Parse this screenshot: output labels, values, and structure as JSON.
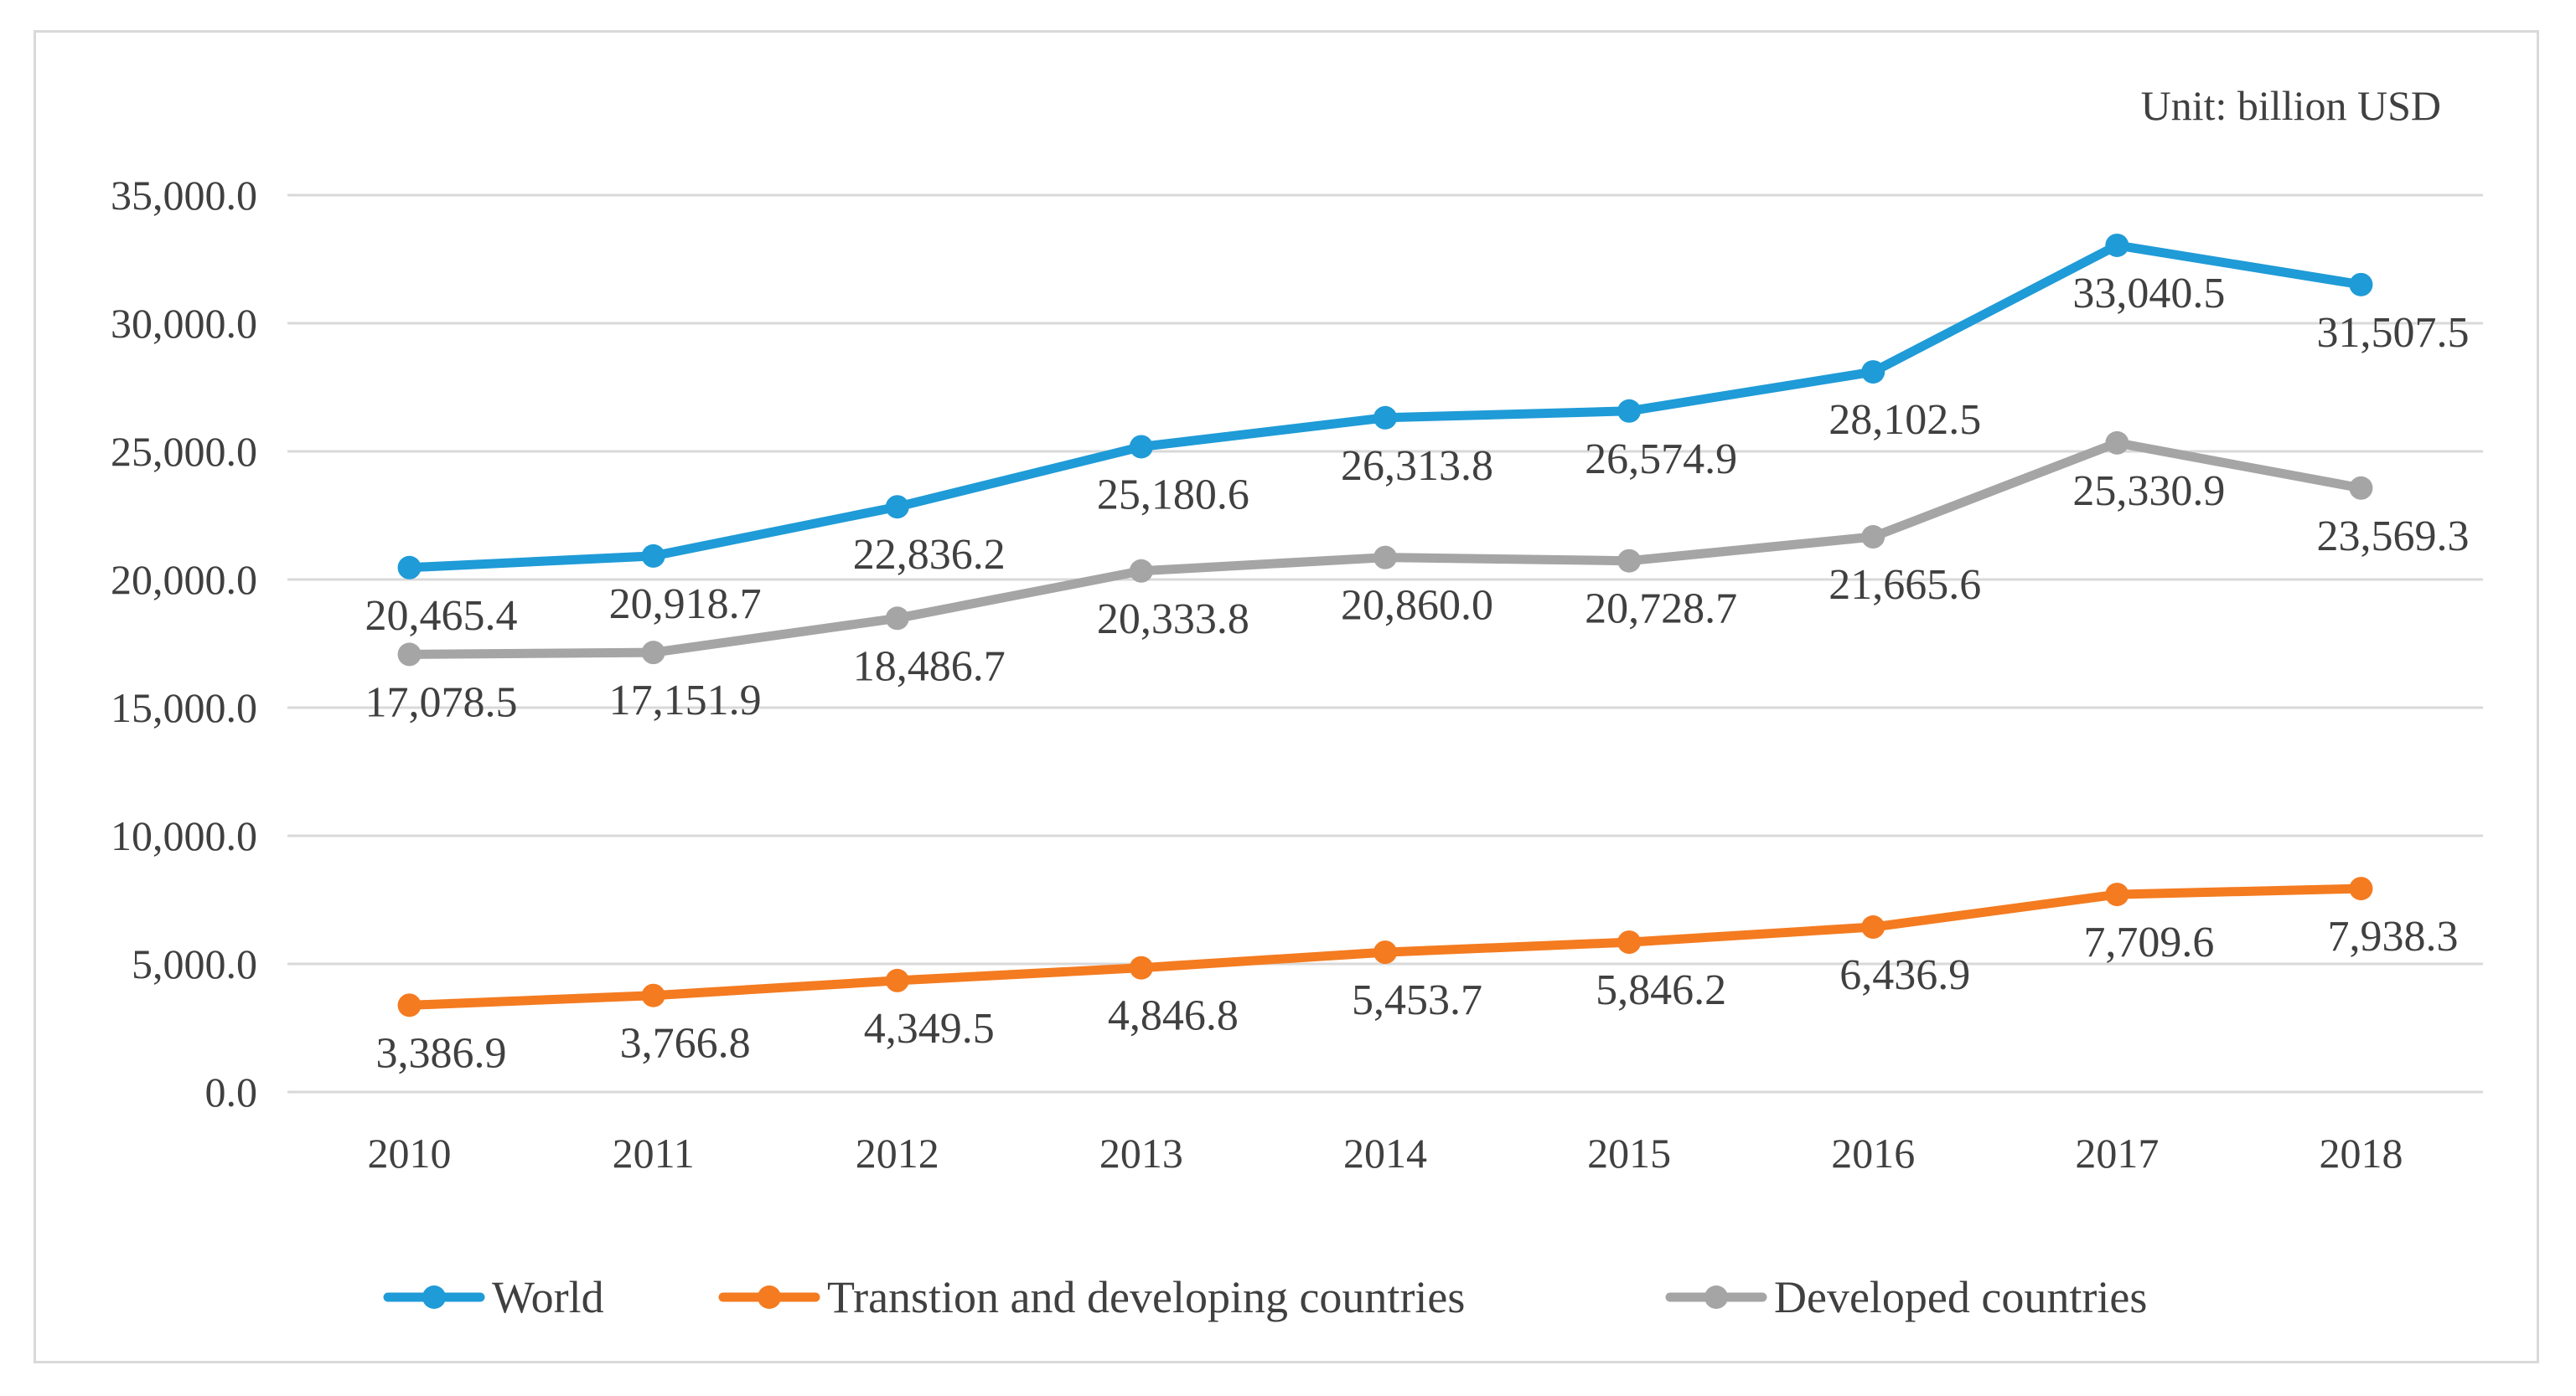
{
  "chart_data": {
    "type": "line",
    "unit_label": "Unit: billion USD",
    "categories": [
      "2010",
      "2011",
      "2012",
      "2013",
      "2014",
      "2015",
      "2016",
      "2017",
      "2018"
    ],
    "ylim": [
      0,
      35000
    ],
    "yticks": [
      "0.0",
      "5,000.0",
      "10,000.0",
      "15,000.0",
      "20,000.0",
      "25,000.0",
      "30,000.0",
      "35,000.0"
    ],
    "ytick_values": [
      0,
      5000,
      10000,
      15000,
      20000,
      25000,
      30000,
      35000
    ],
    "grid": true,
    "legend_position": "bottom",
    "series": [
      {
        "name": "World",
        "color": "#1f9bd7",
        "values": [
          20465.4,
          20918.7,
          22836.2,
          25180.6,
          26313.8,
          26574.9,
          28102.5,
          33040.5,
          31507.5
        ],
        "labels": [
          "20,465.4",
          "20,918.7",
          "22,836.2",
          "25,180.6",
          "26,313.8",
          "26,574.9",
          "28,102.5",
          "33,040.5",
          "31,507.5"
        ]
      },
      {
        "name": "Transtion and developing countries",
        "color": "#f47b20",
        "values": [
          3386.9,
          3766.8,
          4349.5,
          4846.8,
          5453.7,
          5846.2,
          6436.9,
          7709.6,
          7938.3
        ],
        "labels": [
          "3,386.9",
          "3,766.8",
          "4,349.5",
          "4,846.8",
          "5,453.7",
          "5,846.2",
          "6,436.9",
          "7,709.6",
          "7,938.3"
        ]
      },
      {
        "name": "Developed countries",
        "color": "#a5a5a5",
        "values": [
          17078.5,
          17151.9,
          18486.7,
          20333.8,
          20860.0,
          20728.7,
          21665.6,
          25330.9,
          23569.3
        ],
        "labels": [
          "17,078.5",
          "17,151.9",
          "18,486.7",
          "20,333.8",
          "20,860.0",
          "20,728.7",
          "21,665.6",
          "25,330.9",
          "23,569.3"
        ]
      }
    ]
  }
}
